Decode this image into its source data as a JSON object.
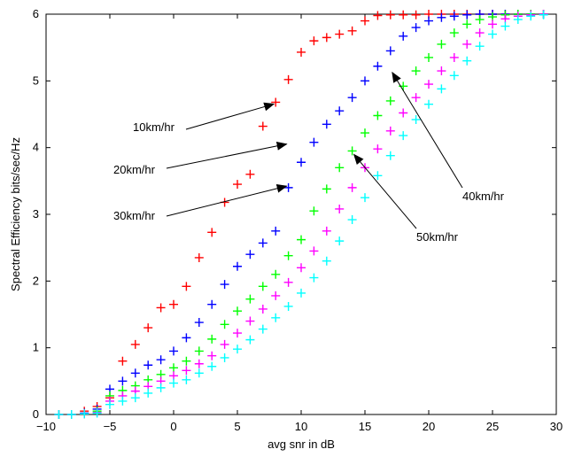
{
  "chart_data": {
    "type": "scatter",
    "title": "",
    "xlabel": "avg snr in dB",
    "ylabel": "Spectral  Efficiency bits/sec/Hz",
    "xlim": [
      -10,
      30
    ],
    "ylim": [
      0,
      6
    ],
    "xticks": [
      -10,
      -5,
      0,
      5,
      10,
      15,
      20,
      25,
      30
    ],
    "yticks": [
      0,
      1,
      2,
      3,
      4,
      5,
      6
    ],
    "xtick_labels": [
      "−10",
      "−5",
      "0",
      "5",
      "10",
      "15",
      "20",
      "25",
      "30"
    ],
    "ytick_labels": [
      "0",
      "1",
      "2",
      "3",
      "4",
      "5",
      "6"
    ],
    "grid": false,
    "marker": "+",
    "series": [
      {
        "name": "10km/hr",
        "color": "#ff0000",
        "points": [
          [
            -9,
            0
          ],
          [
            -8,
            0
          ],
          [
            -7,
            0.05
          ],
          [
            -6,
            0.12
          ],
          [
            -5,
            0.25
          ],
          [
            -4,
            0.8
          ],
          [
            -3,
            1.05
          ],
          [
            -2,
            1.3
          ],
          [
            -1,
            1.6
          ],
          [
            0,
            1.65
          ],
          [
            1,
            1.92
          ],
          [
            2,
            2.35
          ],
          [
            3,
            2.73
          ],
          [
            4,
            3.18
          ],
          [
            5,
            3.45
          ],
          [
            6,
            3.6
          ],
          [
            7,
            4.32
          ],
          [
            8,
            4.68
          ],
          [
            9,
            5.02
          ],
          [
            10,
            5.43
          ],
          [
            11,
            5.6
          ],
          [
            12,
            5.65
          ],
          [
            13,
            5.7
          ],
          [
            14,
            5.75
          ],
          [
            15,
            5.9
          ],
          [
            16,
            5.98
          ],
          [
            17,
            5.99
          ],
          [
            18,
            5.99
          ],
          [
            19,
            5.99
          ],
          [
            20,
            6.0
          ],
          [
            21,
            6.0
          ],
          [
            22,
            6.0
          ],
          [
            23,
            6.0
          ],
          [
            24,
            6.0
          ],
          [
            25,
            6.0
          ],
          [
            26,
            6.0
          ],
          [
            27,
            6.0
          ],
          [
            28,
            6.0
          ],
          [
            29,
            6.0
          ]
        ]
      },
      {
        "name": "20km/hr",
        "color": "#0000ff",
        "points": [
          [
            -9,
            0
          ],
          [
            -8,
            0
          ],
          [
            -7,
            0.02
          ],
          [
            -6,
            0.08
          ],
          [
            -5,
            0.38
          ],
          [
            -4,
            0.5
          ],
          [
            -3,
            0.62
          ],
          [
            -2,
            0.74
          ],
          [
            -1,
            0.82
          ],
          [
            0,
            0.95
          ],
          [
            1,
            1.15
          ],
          [
            2,
            1.38
          ],
          [
            3,
            1.65
          ],
          [
            4,
            1.95
          ],
          [
            5,
            2.22
          ],
          [
            6,
            2.4
          ],
          [
            7,
            2.57
          ],
          [
            8,
            2.75
          ],
          [
            9,
            3.4
          ],
          [
            10,
            3.78
          ],
          [
            11,
            4.08
          ],
          [
            12,
            4.35
          ],
          [
            13,
            4.55
          ],
          [
            14,
            4.75
          ],
          [
            15,
            5.0
          ],
          [
            16,
            5.22
          ],
          [
            17,
            5.45
          ],
          [
            18,
            5.67
          ],
          [
            19,
            5.8
          ],
          [
            20,
            5.9
          ],
          [
            21,
            5.95
          ],
          [
            22,
            5.97
          ],
          [
            23,
            5.99
          ],
          [
            24,
            6.0
          ],
          [
            25,
            6.0
          ],
          [
            26,
            6.0
          ],
          [
            27,
            6.0
          ],
          [
            28,
            6.0
          ],
          [
            29,
            6.0
          ]
        ]
      },
      {
        "name": "30km/hr",
        "color": "#00ff00",
        "points": [
          [
            -9,
            0
          ],
          [
            -8,
            0
          ],
          [
            -7,
            0.01
          ],
          [
            -6,
            0.05
          ],
          [
            -5,
            0.28
          ],
          [
            -4,
            0.36
          ],
          [
            -3,
            0.43
          ],
          [
            -2,
            0.52
          ],
          [
            -1,
            0.6
          ],
          [
            0,
            0.7
          ],
          [
            1,
            0.8
          ],
          [
            2,
            0.95
          ],
          [
            3,
            1.13
          ],
          [
            4,
            1.35
          ],
          [
            5,
            1.55
          ],
          [
            6,
            1.73
          ],
          [
            7,
            1.92
          ],
          [
            8,
            2.1
          ],
          [
            9,
            2.38
          ],
          [
            10,
            2.62
          ],
          [
            11,
            3.05
          ],
          [
            12,
            3.38
          ],
          [
            13,
            3.7
          ],
          [
            14,
            3.95
          ],
          [
            15,
            4.22
          ],
          [
            16,
            4.48
          ],
          [
            17,
            4.7
          ],
          [
            18,
            4.92
          ],
          [
            19,
            5.15
          ],
          [
            20,
            5.35
          ],
          [
            21,
            5.55
          ],
          [
            22,
            5.72
          ],
          [
            23,
            5.85
          ],
          [
            24,
            5.92
          ],
          [
            25,
            5.96
          ],
          [
            26,
            5.99
          ],
          [
            27,
            6.0
          ],
          [
            28,
            6.0
          ],
          [
            29,
            6.0
          ]
        ]
      },
      {
        "name": "40km/hr",
        "color": "#ff00ff",
        "points": [
          [
            -9,
            0
          ],
          [
            -8,
            0
          ],
          [
            -7,
            0.01
          ],
          [
            -6,
            0.03
          ],
          [
            -5,
            0.2
          ],
          [
            -4,
            0.28
          ],
          [
            -3,
            0.35
          ],
          [
            -2,
            0.42
          ],
          [
            -1,
            0.5
          ],
          [
            0,
            0.58
          ],
          [
            1,
            0.66
          ],
          [
            2,
            0.76
          ],
          [
            3,
            0.88
          ],
          [
            4,
            1.05
          ],
          [
            5,
            1.22
          ],
          [
            6,
            1.4
          ],
          [
            7,
            1.58
          ],
          [
            8,
            1.78
          ],
          [
            9,
            1.98
          ],
          [
            10,
            2.2
          ],
          [
            11,
            2.45
          ],
          [
            12,
            2.75
          ],
          [
            13,
            3.08
          ],
          [
            14,
            3.4
          ],
          [
            15,
            3.7
          ],
          [
            16,
            3.98
          ],
          [
            17,
            4.25
          ],
          [
            18,
            4.52
          ],
          [
            19,
            4.75
          ],
          [
            20,
            4.95
          ],
          [
            21,
            5.15
          ],
          [
            22,
            5.35
          ],
          [
            23,
            5.55
          ],
          [
            24,
            5.72
          ],
          [
            25,
            5.85
          ],
          [
            26,
            5.93
          ],
          [
            27,
            5.97
          ],
          [
            28,
            5.99
          ],
          [
            29,
            6.0
          ]
        ]
      },
      {
        "name": "50km/hr",
        "color": "#00ffff",
        "points": [
          [
            -9,
            0
          ],
          [
            -8,
            0
          ],
          [
            -7,
            0.01
          ],
          [
            -6,
            0.02
          ],
          [
            -5,
            0.15
          ],
          [
            -4,
            0.2
          ],
          [
            -3,
            0.25
          ],
          [
            -2,
            0.32
          ],
          [
            -1,
            0.4
          ],
          [
            0,
            0.47
          ],
          [
            1,
            0.52
          ],
          [
            2,
            0.62
          ],
          [
            3,
            0.72
          ],
          [
            4,
            0.85
          ],
          [
            5,
            0.98
          ],
          [
            6,
            1.12
          ],
          [
            7,
            1.28
          ],
          [
            8,
            1.45
          ],
          [
            9,
            1.62
          ],
          [
            10,
            1.82
          ],
          [
            11,
            2.05
          ],
          [
            12,
            2.3
          ],
          [
            13,
            2.6
          ],
          [
            14,
            2.92
          ],
          [
            15,
            3.25
          ],
          [
            16,
            3.58
          ],
          [
            17,
            3.88
          ],
          [
            18,
            4.18
          ],
          [
            19,
            4.42
          ],
          [
            20,
            4.65
          ],
          [
            21,
            4.88
          ],
          [
            22,
            5.08
          ],
          [
            23,
            5.3
          ],
          [
            24,
            5.52
          ],
          [
            25,
            5.7
          ],
          [
            26,
            5.82
          ],
          [
            27,
            5.92
          ],
          [
            28,
            5.97
          ],
          [
            29,
            5.99
          ]
        ]
      }
    ],
    "annotations": [
      {
        "text": "10km/hr",
        "point_to": [
          8,
          4.68
        ]
      },
      {
        "text": "20km/hr",
        "point_to": [
          9,
          4.08
        ]
      },
      {
        "text": "30km/hr",
        "point_to": [
          9,
          3.45
        ]
      },
      {
        "text": "40km/hr",
        "point_to": [
          17,
          5.18
        ]
      },
      {
        "text": "50km/hr",
        "point_to": [
          14,
          3.95
        ]
      }
    ]
  }
}
